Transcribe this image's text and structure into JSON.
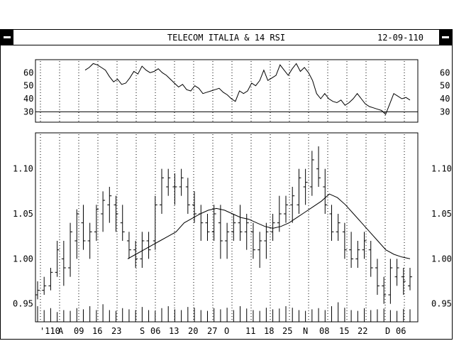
{
  "window": {
    "title": "TELECOM ITALIA & 14 RSI",
    "date": "12-09-110"
  },
  "chart_data": [
    {
      "type": "line",
      "name_hint": "rsi",
      "ylim": [
        22,
        70
      ],
      "yticks": [
        30,
        40,
        50,
        60
      ],
      "hlines": [
        30,
        70
      ],
      "series": [
        {
          "values": [
            62,
            64,
            67,
            66,
            64,
            62,
            57,
            53,
            55,
            51,
            52,
            56,
            61,
            59,
            65,
            62,
            60,
            61,
            63,
            60,
            58,
            55,
            52,
            49,
            51,
            47,
            46,
            50,
            48,
            44,
            45,
            46,
            47,
            48,
            45,
            43,
            40,
            38,
            46,
            44,
            46,
            52,
            50,
            54,
            62,
            54,
            56,
            58,
            66,
            62,
            58,
            63,
            67,
            61,
            64,
            60,
            54,
            44,
            40,
            44,
            40,
            38,
            37,
            39,
            35,
            37,
            40,
            44,
            40,
            36,
            34,
            33,
            32,
            31,
            28,
            36,
            44,
            42,
            40,
            41,
            39
          ]
        }
      ]
    },
    {
      "type": "bar",
      "name_hint": "price",
      "ylim": [
        0.93,
        1.14
      ],
      "yticks": [
        0.95,
        1.0,
        1.05,
        1.1
      ],
      "x_labels": [
        "'110",
        "A",
        "09",
        "16",
        "23",
        "S",
        "06",
        "13",
        "20",
        "27",
        "O",
        "11",
        "18",
        "25",
        "N",
        "08",
        "15",
        "22",
        "D",
        "06"
      ],
      "ohlc": [
        [
          0.96,
          0.975,
          0.955,
          0.965
        ],
        [
          0.965,
          0.98,
          0.96,
          0.97
        ],
        [
          0.97,
          0.99,
          0.965,
          0.985
        ],
        [
          0.985,
          1.02,
          0.98,
          1.01
        ],
        [
          1.0,
          1.02,
          0.97,
          0.99
        ],
        [
          0.99,
          1.04,
          0.98,
          1.03
        ],
        [
          1.02,
          1.055,
          1.0,
          1.05
        ],
        [
          1.04,
          1.06,
          1.01,
          1.02
        ],
        [
          1.02,
          1.04,
          1.0,
          1.03
        ],
        [
          1.03,
          1.06,
          1.02,
          1.055
        ],
        [
          1.05,
          1.075,
          1.03,
          1.065
        ],
        [
          1.06,
          1.08,
          1.04,
          1.07
        ],
        [
          1.06,
          1.07,
          1.03,
          1.05
        ],
        [
          1.04,
          1.06,
          1.02,
          1.03
        ],
        [
          1.02,
          1.03,
          1.0,
          1.01
        ],
        [
          1.01,
          1.02,
          0.99,
          1.0
        ],
        [
          1.0,
          1.03,
          0.99,
          1.02
        ],
        [
          1.02,
          1.03,
          1.0,
          1.01
        ],
        [
          1.02,
          1.07,
          1.01,
          1.06
        ],
        [
          1.06,
          1.1,
          1.05,
          1.09
        ],
        [
          1.08,
          1.1,
          1.07,
          1.09
        ],
        [
          1.08,
          1.095,
          1.06,
          1.08
        ],
        [
          1.08,
          1.1,
          1.07,
          1.09
        ],
        [
          1.08,
          1.09,
          1.05,
          1.06
        ],
        [
          1.06,
          1.075,
          1.04,
          1.05
        ],
        [
          1.05,
          1.06,
          1.02,
          1.04
        ],
        [
          1.04,
          1.05,
          1.02,
          1.03
        ],
        [
          1.03,
          1.06,
          1.02,
          1.05
        ],
        [
          1.04,
          1.06,
          1.0,
          1.02
        ],
        [
          1.02,
          1.04,
          1.0,
          1.03
        ],
        [
          1.03,
          1.05,
          1.02,
          1.04
        ],
        [
          1.04,
          1.06,
          1.02,
          1.03
        ],
        [
          1.03,
          1.05,
          1.01,
          1.04
        ],
        [
          1.03,
          1.04,
          1.0,
          1.01
        ],
        [
          1.01,
          1.03,
          0.99,
          1.02
        ],
        [
          1.02,
          1.04,
          1.0,
          1.03
        ],
        [
          1.03,
          1.05,
          1.02,
          1.04
        ],
        [
          1.04,
          1.07,
          1.03,
          1.05
        ],
        [
          1.05,
          1.07,
          1.04,
          1.06
        ],
        [
          1.06,
          1.08,
          1.04,
          1.07
        ],
        [
          1.06,
          1.1,
          1.05,
          1.09
        ],
        [
          1.08,
          1.1,
          1.06,
          1.085
        ],
        [
          1.08,
          1.12,
          1.07,
          1.11
        ],
        [
          1.1,
          1.125,
          1.08,
          1.09
        ],
        [
          1.08,
          1.1,
          1.05,
          1.06
        ],
        [
          1.05,
          1.06,
          1.02,
          1.03
        ],
        [
          1.03,
          1.05,
          1.02,
          1.04
        ],
        [
          1.03,
          1.04,
          1.0,
          1.01
        ],
        [
          1.01,
          1.03,
          0.99,
          1.0
        ],
        [
          1.0,
          1.02,
          0.99,
          1.01
        ],
        [
          1.01,
          1.03,
          1.0,
          1.02
        ],
        [
          1.01,
          1.02,
          0.98,
          0.99
        ],
        [
          0.99,
          1.0,
          0.96,
          0.97
        ],
        [
          0.97,
          0.98,
          0.95,
          0.96
        ],
        [
          0.96,
          1.0,
          0.95,
          0.99
        ],
        [
          0.98,
          1.0,
          0.97,
          0.99
        ],
        [
          0.98,
          0.99,
          0.96,
          0.975
        ],
        [
          0.97,
          0.99,
          0.965,
          0.98
        ]
      ],
      "moving_average": [
        1.0,
        1.005,
        1.01,
        1.015,
        1.02,
        1.025,
        1.03,
        1.04,
        1.045,
        1.05,
        1.054,
        1.056,
        1.054,
        1.05,
        1.046,
        1.044,
        1.04,
        1.036,
        1.034,
        1.036,
        1.04,
        1.046,
        1.052,
        1.058,
        1.064,
        1.072,
        1.068,
        1.06,
        1.05,
        1.04,
        1.03,
        1.02,
        1.01,
        1.005,
        1.002,
        1.0
      ],
      "volume": [
        40,
        30,
        35,
        25,
        30,
        28,
        35,
        32,
        40,
        30,
        45,
        30,
        28,
        35,
        32,
        30,
        38,
        30,
        28,
        35,
        40,
        32,
        30,
        38,
        36,
        30,
        28,
        35,
        32,
        36,
        30,
        40,
        34,
        30,
        28,
        36,
        32,
        34,
        40,
        36,
        30,
        28,
        32,
        35,
        30,
        40,
        50,
        36,
        30,
        28,
        35,
        30,
        32,
        34,
        30,
        28,
        33,
        32
      ]
    }
  ]
}
